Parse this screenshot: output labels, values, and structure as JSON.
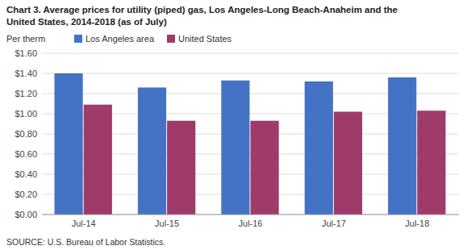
{
  "chart_data": {
    "type": "bar",
    "title": "Chart 3. Average prices for utility (piped) gas, Los Angeles-Long Beach-Anaheim and the",
    "subtitle": "United States, 2014-2018  (as of July)",
    "y_label": "Per therm",
    "annotations": [
      "SOURCE: U.S. Bureau of Labor Statistics."
    ],
    "categories": [
      "Jul-14",
      "Jul-15",
      "Jul-16",
      "Jul-17",
      "Jul-18"
    ],
    "series": [
      {
        "name": "Los Angeles area",
        "color": "#4472C4",
        "values": [
          1.4,
          1.26,
          1.33,
          1.32,
          1.36
        ]
      },
      {
        "name": "United States",
        "color": "#9E3B6A",
        "values": [
          1.09,
          0.93,
          0.93,
          1.02,
          1.03
        ]
      }
    ],
    "ylim": [
      0.0,
      1.6
    ],
    "yticks": [
      {
        "value": 0.0,
        "label": "$0.00"
      },
      {
        "value": 0.2,
        "label": "$0.20"
      },
      {
        "value": 0.4,
        "label": "$0.40"
      },
      {
        "value": 0.6,
        "label": "$0.60"
      },
      {
        "value": 0.8,
        "label": "$0.80"
      },
      {
        "value": 1.0,
        "label": "$1.00"
      },
      {
        "value": 1.2,
        "label": "$1.20"
      },
      {
        "value": 1.4,
        "label": "$1.40"
      },
      {
        "value": 1.6,
        "label": "$1.60"
      }
    ],
    "grid": true,
    "legend": "upper left"
  }
}
